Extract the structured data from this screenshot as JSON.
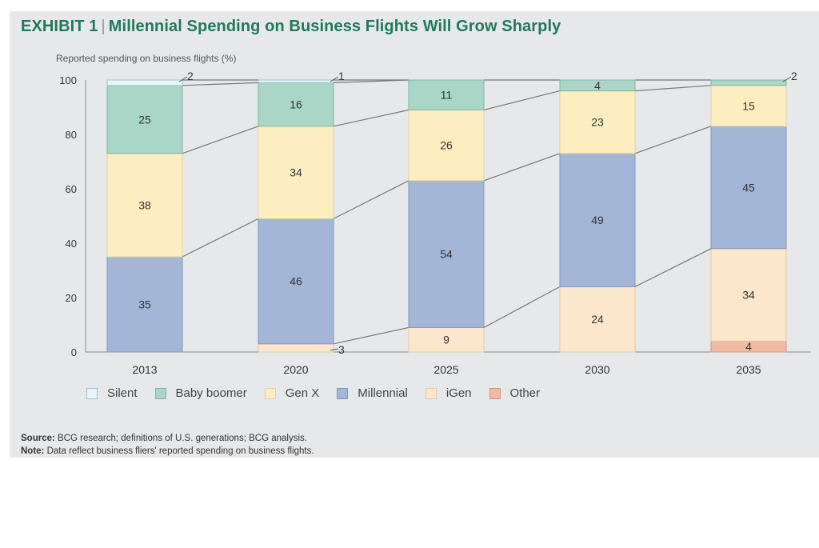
{
  "exhibit_label": "EXHIBIT 1",
  "chart_data": {
    "type": "bar",
    "stacked": true,
    "title": "Millennial Spending on Business Flights Will Grow Sharply",
    "ylabel": "Reported spending on business flights (%)",
    "xlabel": "",
    "ylim": [
      0,
      100
    ],
    "yticks": [
      "0",
      "20",
      "40",
      "60",
      "80",
      "100"
    ],
    "categories": [
      "2013",
      "2020",
      "2025",
      "2030",
      "2035"
    ],
    "series": [
      {
        "name": "Other",
        "color": "#f1bba3",
        "values": [
          0,
          0,
          0,
          0,
          4
        ]
      },
      {
        "name": "iGen",
        "color": "#fce6cc",
        "values": [
          0,
          3,
          9,
          24,
          34
        ]
      },
      {
        "name": "Millennial",
        "color": "#a3b6d8",
        "values": [
          35,
          46,
          54,
          49,
          45
        ]
      },
      {
        "name": "Gen X",
        "color": "#fdeec2",
        "values": [
          38,
          34,
          26,
          23,
          15
        ]
      },
      {
        "name": "Baby boomer",
        "color": "#a9d6c6",
        "values": [
          25,
          16,
          11,
          4,
          2
        ]
      },
      {
        "name": "Silent",
        "color": "#eaf5f7",
        "values": [
          2,
          1,
          0,
          0,
          0
        ]
      }
    ],
    "legend_order": [
      "Silent",
      "Baby boomer",
      "Gen X",
      "Millennial",
      "iGen",
      "Other"
    ],
    "legend_position": "bottom",
    "grid": false
  },
  "source": {
    "label": "Source:",
    "text": "BCG research; definitions of U.S. generations; BCG analysis."
  },
  "note": {
    "label": "Note:",
    "text": "Data reflect business fliers' reported spending on business flights."
  }
}
